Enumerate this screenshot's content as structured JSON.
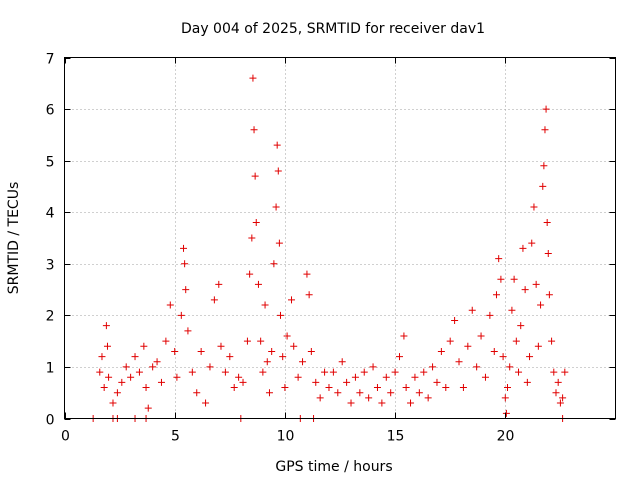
{
  "chart_data": {
    "type": "scatter",
    "title": "Day 004 of 2025, SRMTID for receiver dav1",
    "xlabel": "GPS time / hours",
    "ylabel": "SRMTID / TECUs",
    "xlim": [
      0,
      25
    ],
    "ylim": [
      0,
      7
    ],
    "xticks": [
      0,
      5,
      10,
      15,
      20
    ],
    "yticks": [
      0,
      1,
      2,
      3,
      4,
      5,
      6,
      7
    ],
    "grid": true,
    "marker": "plus",
    "color": "#e00000",
    "series": [
      {
        "name": "SRMTID",
        "points": [
          [
            1.3,
            0.0
          ],
          [
            2.2,
            0.0
          ],
          [
            2.4,
            0.0
          ],
          [
            3.2,
            0.0
          ],
          [
            3.7,
            0.0
          ],
          [
            8.0,
            0.0
          ],
          [
            10.7,
            0.0
          ],
          [
            11.3,
            0.0
          ],
          [
            22.6,
            0.0
          ],
          [
            1.6,
            0.9
          ],
          [
            1.7,
            1.2
          ],
          [
            1.8,
            0.6
          ],
          [
            1.9,
            1.8
          ],
          [
            1.95,
            1.4
          ],
          [
            2.0,
            0.8
          ],
          [
            2.2,
            0.3
          ],
          [
            2.4,
            0.5
          ],
          [
            2.6,
            0.7
          ],
          [
            2.8,
            1.0
          ],
          [
            3.0,
            0.8
          ],
          [
            3.2,
            1.2
          ],
          [
            3.4,
            0.9
          ],
          [
            3.6,
            1.4
          ],
          [
            3.7,
            0.6
          ],
          [
            3.8,
            0.2
          ],
          [
            4.0,
            1.0
          ],
          [
            4.2,
            1.1
          ],
          [
            4.4,
            0.7
          ],
          [
            4.6,
            1.5
          ],
          [
            4.8,
            2.2
          ],
          [
            5.0,
            1.3
          ],
          [
            5.1,
            0.8
          ],
          [
            5.3,
            2.0
          ],
          [
            5.4,
            3.3
          ],
          [
            5.45,
            3.0
          ],
          [
            5.5,
            2.5
          ],
          [
            5.6,
            1.7
          ],
          [
            5.8,
            0.9
          ],
          [
            6.0,
            0.5
          ],
          [
            6.2,
            1.3
          ],
          [
            6.4,
            0.3
          ],
          [
            6.6,
            1.0
          ],
          [
            6.8,
            2.3
          ],
          [
            7.0,
            2.6
          ],
          [
            7.1,
            1.4
          ],
          [
            7.3,
            0.9
          ],
          [
            7.5,
            1.2
          ],
          [
            7.7,
            0.6
          ],
          [
            7.9,
            0.8
          ],
          [
            8.1,
            0.7
          ],
          [
            8.3,
            1.5
          ],
          [
            8.4,
            2.8
          ],
          [
            8.5,
            3.5
          ],
          [
            8.55,
            6.6
          ],
          [
            8.6,
            5.6
          ],
          [
            8.65,
            4.7
          ],
          [
            8.7,
            3.8
          ],
          [
            8.8,
            2.6
          ],
          [
            8.9,
            1.5
          ],
          [
            9.0,
            0.9
          ],
          [
            9.1,
            2.2
          ],
          [
            9.2,
            1.1
          ],
          [
            9.3,
            0.5
          ],
          [
            9.4,
            1.3
          ],
          [
            9.5,
            3.0
          ],
          [
            9.6,
            4.1
          ],
          [
            9.65,
            5.3
          ],
          [
            9.7,
            4.8
          ],
          [
            9.75,
            3.4
          ],
          [
            9.8,
            2.0
          ],
          [
            9.9,
            1.2
          ],
          [
            10.0,
            0.6
          ],
          [
            10.1,
            1.6
          ],
          [
            10.3,
            2.3
          ],
          [
            10.4,
            1.4
          ],
          [
            10.6,
            0.8
          ],
          [
            10.8,
            1.1
          ],
          [
            11.0,
            2.8
          ],
          [
            11.1,
            2.4
          ],
          [
            11.2,
            1.3
          ],
          [
            11.4,
            0.7
          ],
          [
            11.6,
            0.4
          ],
          [
            11.8,
            0.9
          ],
          [
            12.0,
            0.6
          ],
          [
            12.2,
            0.9
          ],
          [
            12.4,
            0.5
          ],
          [
            12.6,
            1.1
          ],
          [
            12.8,
            0.7
          ],
          [
            13.0,
            0.3
          ],
          [
            13.2,
            0.8
          ],
          [
            13.4,
            0.5
          ],
          [
            13.6,
            0.9
          ],
          [
            13.8,
            0.4
          ],
          [
            14.0,
            1.0
          ],
          [
            14.2,
            0.6
          ],
          [
            14.4,
            0.3
          ],
          [
            14.6,
            0.8
          ],
          [
            14.8,
            0.5
          ],
          [
            15.0,
            0.9
          ],
          [
            15.2,
            1.2
          ],
          [
            15.4,
            1.6
          ],
          [
            15.5,
            0.6
          ],
          [
            15.7,
            0.3
          ],
          [
            15.9,
            0.8
          ],
          [
            16.1,
            0.5
          ],
          [
            16.3,
            0.9
          ],
          [
            16.5,
            0.4
          ],
          [
            16.7,
            1.0
          ],
          [
            16.9,
            0.7
          ],
          [
            17.1,
            1.3
          ],
          [
            17.3,
            0.6
          ],
          [
            17.5,
            1.5
          ],
          [
            17.7,
            1.9
          ],
          [
            17.9,
            1.1
          ],
          [
            18.1,
            0.6
          ],
          [
            18.3,
            1.4
          ],
          [
            18.5,
            2.1
          ],
          [
            18.7,
            1.0
          ],
          [
            18.9,
            1.6
          ],
          [
            19.1,
            0.8
          ],
          [
            19.3,
            2.0
          ],
          [
            19.5,
            1.3
          ],
          [
            19.6,
            2.4
          ],
          [
            19.7,
            3.1
          ],
          [
            19.8,
            2.7
          ],
          [
            19.9,
            1.2
          ],
          [
            20.0,
            0.4
          ],
          [
            20.05,
            0.1
          ],
          [
            20.1,
            0.6
          ],
          [
            20.2,
            1.0
          ],
          [
            20.3,
            2.1
          ],
          [
            20.4,
            2.7
          ],
          [
            20.5,
            1.5
          ],
          [
            20.6,
            0.9
          ],
          [
            20.7,
            1.8
          ],
          [
            20.8,
            3.3
          ],
          [
            20.9,
            2.5
          ],
          [
            21.0,
            0.7
          ],
          [
            21.1,
            1.2
          ],
          [
            21.2,
            3.4
          ],
          [
            21.3,
            4.1
          ],
          [
            21.4,
            2.6
          ],
          [
            21.5,
            1.4
          ],
          [
            21.6,
            2.2
          ],
          [
            21.7,
            4.5
          ],
          [
            21.75,
            4.9
          ],
          [
            21.8,
            5.6
          ],
          [
            21.85,
            6.0
          ],
          [
            21.9,
            3.8
          ],
          [
            21.95,
            3.2
          ],
          [
            22.0,
            2.4
          ],
          [
            22.1,
            1.5
          ],
          [
            22.2,
            0.9
          ],
          [
            22.3,
            0.5
          ],
          [
            22.4,
            0.7
          ],
          [
            22.5,
            0.3
          ],
          [
            22.6,
            0.4
          ],
          [
            22.7,
            0.9
          ]
        ]
      }
    ]
  }
}
